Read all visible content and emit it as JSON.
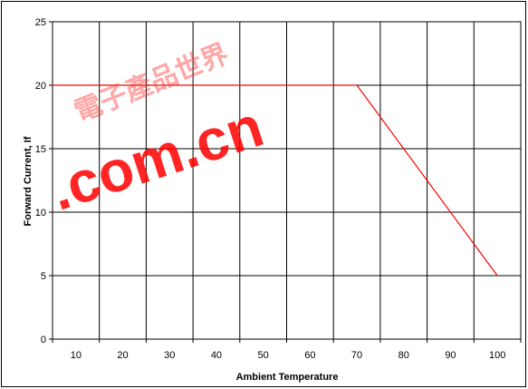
{
  "chart_data": {
    "type": "line",
    "xlabel": "Ambient Temperature",
    "ylabel": "Forward Current, If",
    "x_ticks": [
      10,
      20,
      30,
      40,
      50,
      60,
      70,
      80,
      90,
      100
    ],
    "y_ticks": [
      0,
      5,
      10,
      15,
      20,
      25
    ],
    "xlim": [
      5,
      105
    ],
    "ylim": [
      0,
      25
    ],
    "grid": true,
    "legend": "none",
    "series": [
      {
        "color": "#ff0000",
        "x": [
          5,
          70,
          100
        ],
        "y": [
          20,
          20,
          5
        ]
      }
    ]
  },
  "watermark": {
    "text": ".com.cn",
    "color": "#ff0000",
    "glyphs": "電子產品世界"
  },
  "colors": {
    "grid": "#000000",
    "background": "#ffffff"
  }
}
